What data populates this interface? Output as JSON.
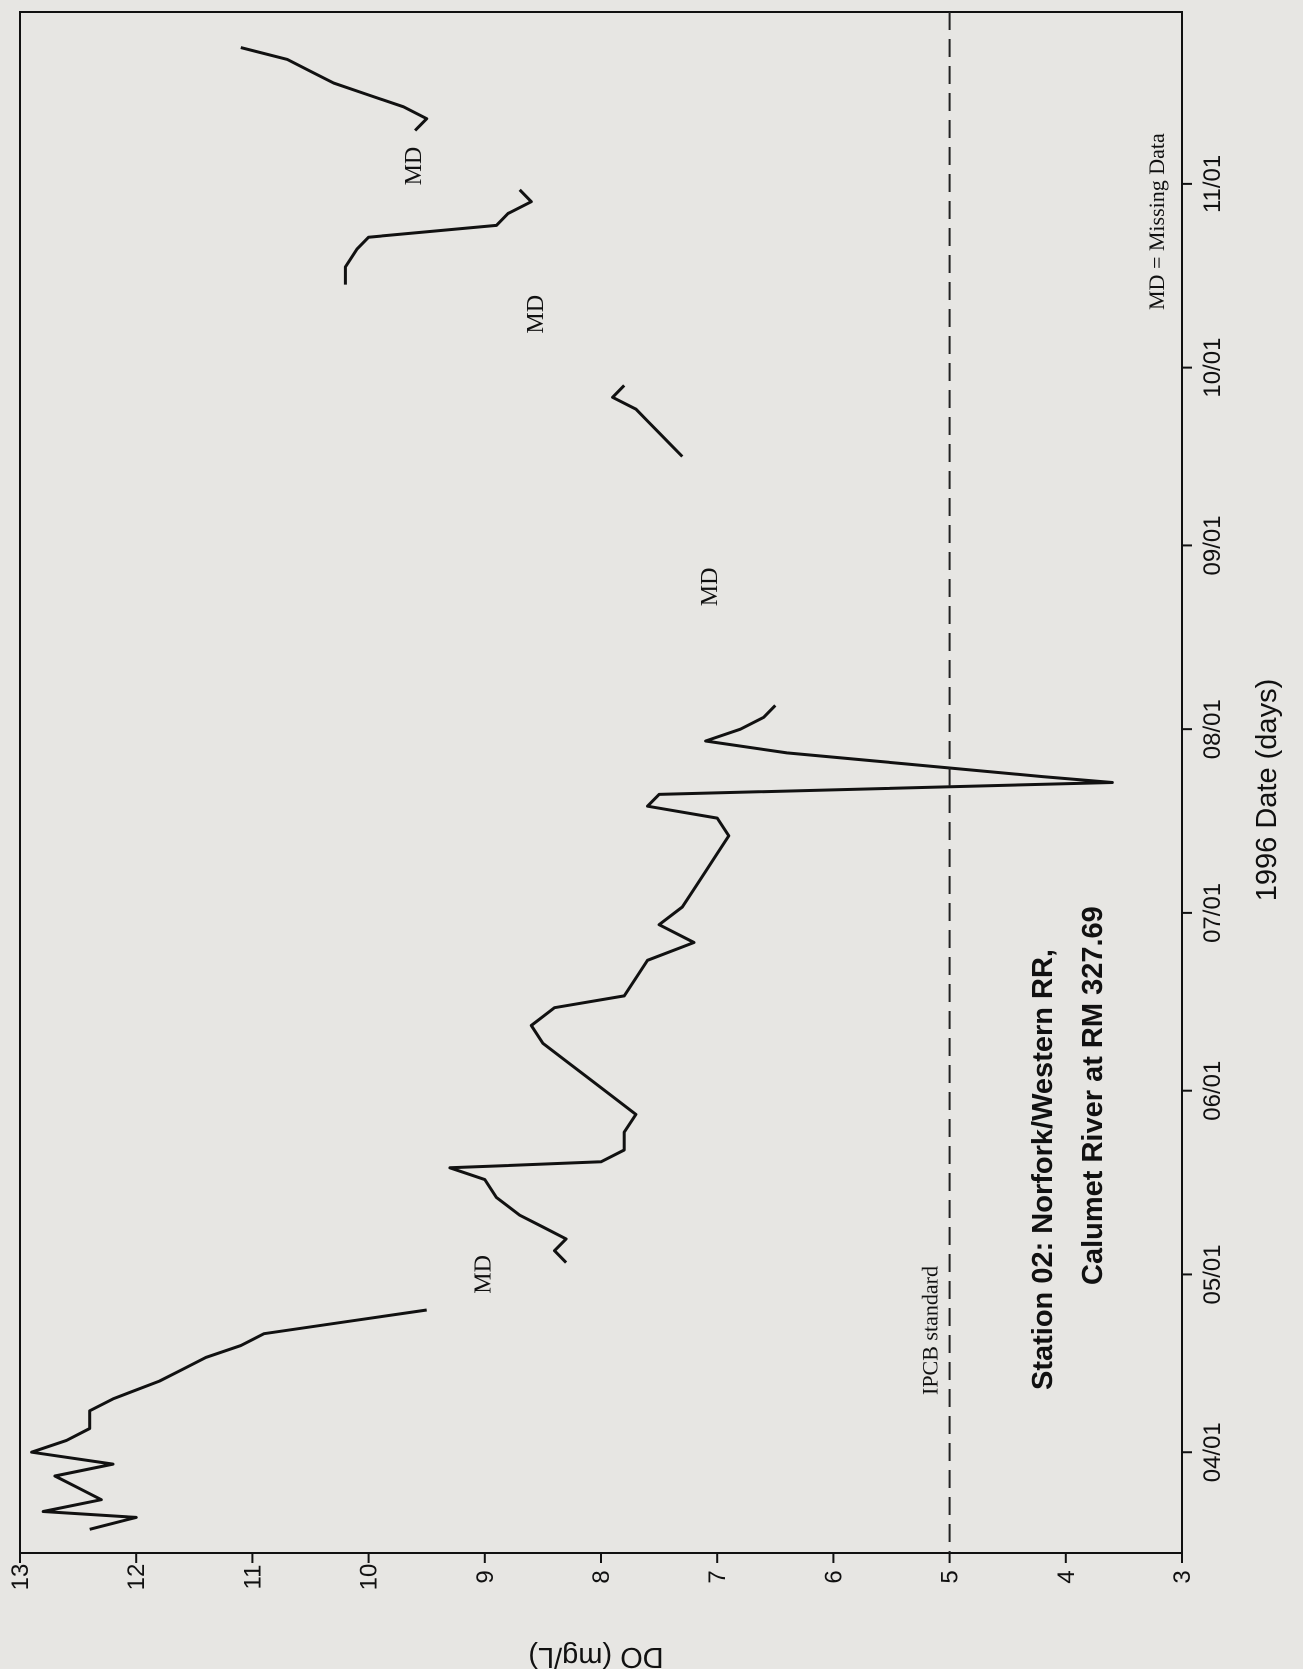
{
  "chart_data": {
    "type": "line",
    "title": [
      "Station 02: Norfork/Western RR,",
      "Calumet River at RM 327.69"
    ],
    "xlabel": "1996 Date (days)",
    "ylabel": "DO (mg/L)",
    "x_unit": "day-of-year 1996",
    "xlim": [
      "1996-03-15",
      "1996-11-30"
    ],
    "ylim": [
      3,
      13
    ],
    "x_ticks": [
      {
        "date": "1996-04-01",
        "label": "04/01"
      },
      {
        "date": "1996-05-01",
        "label": "05/01"
      },
      {
        "date": "1996-06-01",
        "label": "06/01"
      },
      {
        "date": "1996-07-01",
        "label": "07/01"
      },
      {
        "date": "1996-08-01",
        "label": "08/01"
      },
      {
        "date": "1996-09-01",
        "label": "09/01"
      },
      {
        "date": "1996-10-01",
        "label": "10/01"
      },
      {
        "date": "1996-11-01",
        "label": "11/01"
      }
    ],
    "y_ticks": [
      "3",
      "4",
      "5",
      "6",
      "7",
      "8",
      "9",
      "10",
      "11",
      "12",
      "13"
    ],
    "reference_lines": [
      {
        "y": 5,
        "label": "IPCB standard",
        "style": "dashed"
      }
    ],
    "annotations": [
      {
        "text": "MD",
        "date": "1996-05-01",
        "y": 8.95
      },
      {
        "text": "MD",
        "date": "1996-08-25",
        "y": 7.0
      },
      {
        "text": "MD",
        "date": "1996-10-10",
        "y": 8.5
      },
      {
        "text": "MD",
        "date": "1996-11-04",
        "y": 9.55
      }
    ],
    "note": "MD = Missing Data",
    "series": [
      {
        "segments": [
          [
            [
              "1996-03-19",
              12.4
            ],
            [
              "1996-03-21",
              12.0
            ],
            [
              "1996-03-22",
              12.8
            ],
            [
              "1996-03-24",
              12.3
            ],
            [
              "1996-03-26",
              12.5
            ],
            [
              "1996-03-28",
              12.7
            ],
            [
              "1996-03-30",
              12.2
            ],
            [
              "1996-04-01",
              12.9
            ],
            [
              "1996-04-03",
              12.6
            ],
            [
              "1996-04-05",
              12.4
            ],
            [
              "1996-04-08",
              12.4
            ],
            [
              "1996-04-10",
              12.2
            ],
            [
              "1996-04-13",
              11.8
            ],
            [
              "1996-04-15",
              11.6
            ],
            [
              "1996-04-17",
              11.4
            ],
            [
              "1996-04-19",
              11.1
            ],
            [
              "1996-04-21",
              10.9
            ],
            [
              "1996-04-23",
              10.2
            ],
            [
              "1996-04-25",
              9.5
            ]
          ],
          [
            [
              "1996-05-03",
              8.3
            ],
            [
              "1996-05-05",
              8.4
            ],
            [
              "1996-05-07",
              8.3
            ],
            [
              "1996-05-09",
              8.5
            ],
            [
              "1996-05-11",
              8.7
            ],
            [
              "1996-05-14",
              8.9
            ],
            [
              "1996-05-17",
              9.0
            ],
            [
              "1996-05-19",
              9.3
            ],
            [
              "1996-05-20",
              8.0
            ],
            [
              "1996-05-22",
              7.8
            ],
            [
              "1996-05-25",
              7.8
            ],
            [
              "1996-05-28",
              7.7
            ],
            [
              "1996-05-31",
              7.9
            ],
            [
              "1996-06-03",
              8.1
            ],
            [
              "1996-06-06",
              8.3
            ],
            [
              "1996-06-09",
              8.5
            ],
            [
              "1996-06-12",
              8.6
            ],
            [
              "1996-06-15",
              8.4
            ],
            [
              "1996-06-17",
              7.8
            ],
            [
              "1996-06-20",
              7.7
            ],
            [
              "1996-06-23",
              7.6
            ],
            [
              "1996-06-26",
              7.2
            ],
            [
              "1996-06-29",
              7.5
            ],
            [
              "1996-07-02",
              7.3
            ],
            [
              "1996-07-05",
              7.2
            ],
            [
              "1996-07-08",
              7.1
            ],
            [
              "1996-07-11",
              7.0
            ],
            [
              "1996-07-14",
              6.9
            ],
            [
              "1996-07-17",
              7.0
            ],
            [
              "1996-07-19",
              7.6
            ],
            [
              "1996-07-21",
              7.5
            ],
            [
              "1996-07-23",
              3.6
            ],
            [
              "1996-07-24",
              4.2
            ],
            [
              "1996-07-26",
              5.3
            ],
            [
              "1996-07-28",
              6.4
            ],
            [
              "1996-07-30",
              7.1
            ],
            [
              "1996-08-01",
              6.8
            ],
            [
              "1996-08-03",
              6.6
            ],
            [
              "1996-08-05",
              6.5
            ]
          ],
          [
            [
              "1996-09-16",
              7.3
            ],
            [
              "1996-09-18",
              7.4
            ],
            [
              "1996-09-20",
              7.5
            ],
            [
              "1996-09-22",
              7.6
            ],
            [
              "1996-09-24",
              7.7
            ],
            [
              "1996-09-26",
              7.9
            ],
            [
              "1996-09-28",
              7.8
            ]
          ],
          [
            [
              "1996-10-15",
              10.2
            ],
            [
              "1996-10-18",
              10.2
            ],
            [
              "1996-10-21",
              10.1
            ],
            [
              "1996-10-23",
              10.0
            ],
            [
              "1996-10-25",
              8.9
            ],
            [
              "1996-10-27",
              8.8
            ],
            [
              "1996-10-29",
              8.6
            ],
            [
              "1996-10-31",
              8.7
            ]
          ],
          [
            [
              "1996-11-10",
              9.6
            ],
            [
              "1996-11-12",
              9.5
            ],
            [
              "1996-11-14",
              9.7
            ],
            [
              "1996-11-16",
              10.0
            ],
            [
              "1996-11-18",
              10.3
            ],
            [
              "1996-11-20",
              10.5
            ],
            [
              "1996-11-22",
              10.7
            ],
            [
              "1996-11-24",
              11.1
            ]
          ]
        ]
      }
    ]
  }
}
